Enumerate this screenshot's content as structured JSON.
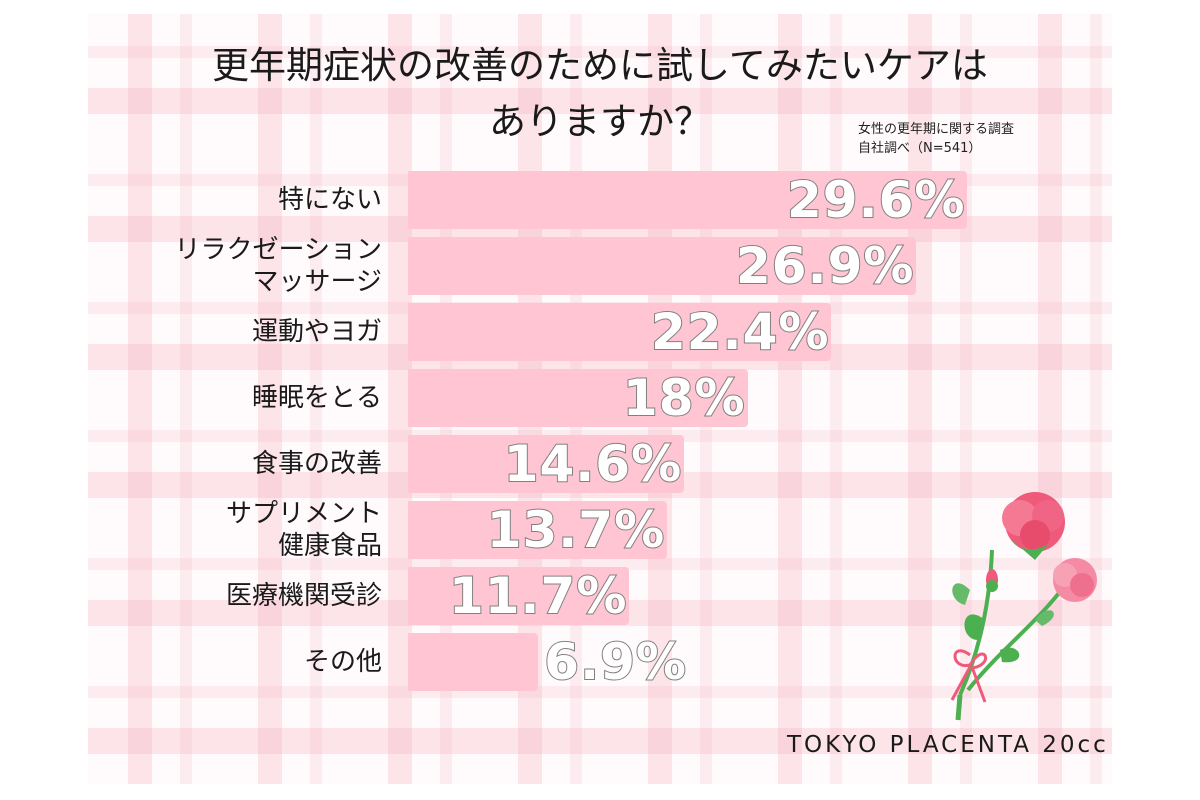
{
  "title_line1": "更年期症状の改善のために試してみたいケアは",
  "title_line2": "ありますか？",
  "note_line1": "女性の更年期に関する調査",
  "note_line2": "自社調べ（N=541）",
  "brand": "TOKYO PLACENTA 20cc",
  "colors": {
    "bar": "#ffc5d3",
    "value_text": "#ffffff",
    "value_outline": "#808080",
    "flower": "#ef5a7a",
    "stem": "#4caf50"
  },
  "icons": [
    "carnation-bouquet-icon"
  ],
  "chart_data": {
    "type": "bar",
    "orientation": "horizontal",
    "categories": [
      [
        "特にない"
      ],
      [
        "リラクゼーション",
        "マッサージ"
      ],
      [
        "運動やヨガ"
      ],
      [
        "睡眠をとる"
      ],
      [
        "食事の改善"
      ],
      [
        "サプリメント",
        "健康食品"
      ],
      [
        "医療機関受診"
      ],
      [
        "その他"
      ]
    ],
    "values": [
      29.6,
      26.9,
      22.4,
      18,
      14.6,
      13.7,
      11.7,
      6.9
    ],
    "value_labels": [
      "29.6%",
      "26.9%",
      "22.4%",
      "18%",
      "14.6%",
      "13.7%",
      "11.7%",
      "6.9%"
    ],
    "title": "更年期症状の改善のために試してみたいケアはありますか？",
    "xlabel": "",
    "ylabel": "",
    "xlim": [
      0,
      30
    ],
    "grid": false,
    "legend": "none"
  }
}
